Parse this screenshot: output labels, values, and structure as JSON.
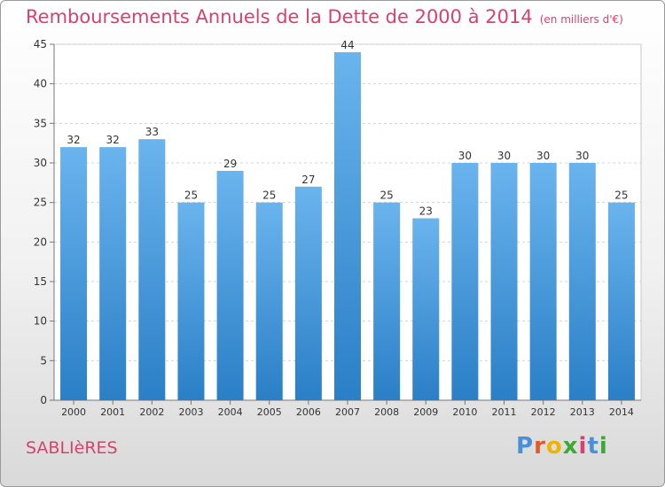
{
  "title": "Remboursements Annuels de la Dette de 2000 à 2014",
  "unit": "(en milliers d'€)",
  "city": "SABLIèRES",
  "brand": {
    "letters": [
      "P",
      "r",
      "o",
      "x",
      "i",
      "t",
      "i"
    ],
    "colors": [
      "#4a90d9",
      "#e05a2b",
      "#f0b400",
      "#3aaa35",
      "#d9416d",
      "#4a90d9",
      "#3aaa35"
    ]
  },
  "colors": {
    "bar_light": "#6ab4ee",
    "bar_dark": "#2a7fc6",
    "title": "#d9416d"
  },
  "chart_data": {
    "type": "bar",
    "categories": [
      "2000",
      "2001",
      "2002",
      "2003",
      "2004",
      "2005",
      "2006",
      "2007",
      "2008",
      "2009",
      "2010",
      "2011",
      "2012",
      "2013",
      "2014"
    ],
    "values": [
      32,
      32,
      33,
      25,
      29,
      25,
      27,
      44,
      25,
      23,
      30,
      30,
      30,
      30,
      25
    ],
    "ylim": [
      0,
      45
    ],
    "yticks": [
      0,
      5,
      10,
      15,
      20,
      25,
      30,
      35,
      40,
      45
    ],
    "grid": true,
    "legend": "none"
  }
}
